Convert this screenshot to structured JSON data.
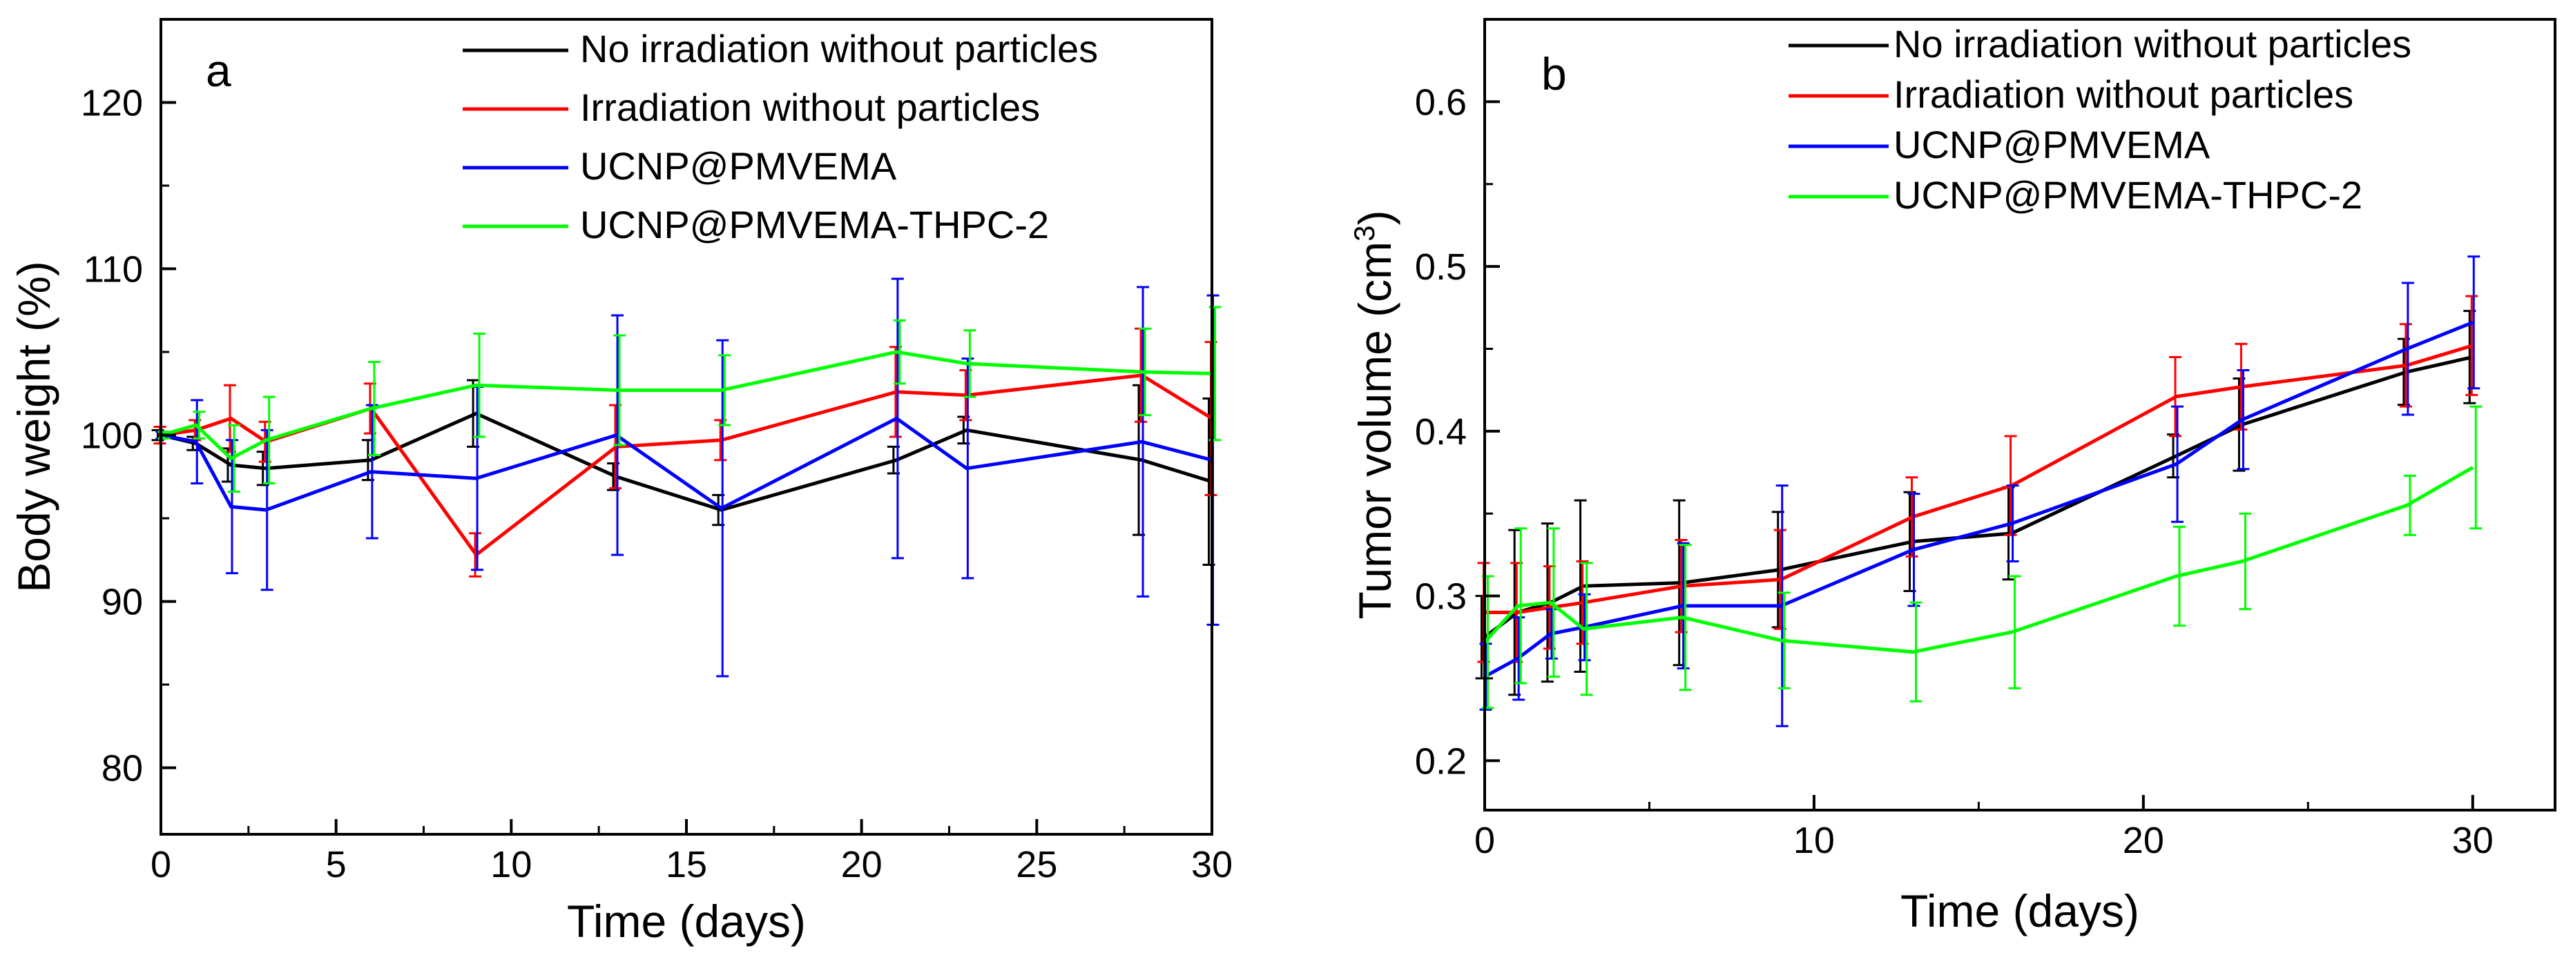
{
  "chart_data": [
    {
      "panel_label": "a",
      "type": "line",
      "xlabel": "Time (days)",
      "ylabel": "Body weight (%)",
      "xlim": [
        0,
        30
      ],
      "ylim": [
        76,
        125
      ],
      "xticks": [
        0,
        5,
        10,
        15,
        20,
        25,
        30
      ],
      "yticks": [
        80,
        90,
        100,
        110,
        120
      ],
      "xtick_labels": [
        "0",
        "5",
        "10",
        "15",
        "20",
        "25",
        "30"
      ],
      "ytick_labels": [
        "80",
        "90",
        "100",
        "110",
        "120"
      ],
      "legend_position": "top-right",
      "x": [
        0,
        1,
        2,
        3,
        6,
        9,
        13,
        16,
        21,
        23,
        28,
        30
      ],
      "series": [
        {
          "name": "No irradiation without particles",
          "color": "#000000",
          "values": [
            100,
            99.5,
            98.2,
            98,
            98.5,
            101.3,
            97.5,
            95.5,
            98.5,
            100.3,
            98.5,
            97.2
          ],
          "errors": [
            0.3,
            0.4,
            1.0,
            1.0,
            1.2,
            2.0,
            0.8,
            0.9,
            0.8,
            0.8,
            4.5,
            5.0
          ]
        },
        {
          "name": "Irradiation without particles",
          "color": "#ff0000",
          "values": [
            100,
            100.3,
            101,
            99.6,
            101.6,
            92.8,
            99.3,
            99.7,
            102.6,
            102.4,
            103.6,
            101
          ],
          "errors": [
            0.5,
            0.6,
            2.0,
            1.2,
            1.5,
            1.3,
            2.5,
            1.2,
            2.7,
            1.5,
            2.8,
            4.6
          ]
        },
        {
          "name": "UCNP@PMVEMA",
          "color": "#0000ff",
          "values": [
            100,
            99.6,
            95.7,
            95.5,
            97.8,
            97.4,
            100,
            95.6,
            101,
            98,
            99.6,
            98.5
          ],
          "errors": [
            0.2,
            2.5,
            4.0,
            4.8,
            4.0,
            5.5,
            7.2,
            10.1,
            8.4,
            6.6,
            9.3,
            9.9
          ]
        },
        {
          "name": "UCNP@PMVEMA-THPC-2",
          "color": "#00ff00",
          "values": [
            100,
            100.6,
            98.6,
            99.7,
            101.6,
            103,
            102.7,
            102.7,
            105,
            104.3,
            103.8,
            103.7
          ],
          "errors": [
            0.2,
            0.8,
            2.0,
            2.6,
            2.8,
            3.1,
            3.3,
            2.1,
            1.9,
            2.0,
            2.6,
            4.0
          ]
        }
      ]
    },
    {
      "panel_label": "b",
      "type": "line",
      "xlabel": "Time (days)",
      "ylabel_prefix": "Tumor volume (cm",
      "ylabel_sup": "3",
      "ylabel_suffix": ")",
      "xlim": [
        0,
        32.5
      ],
      "ylim": [
        0.17,
        0.65
      ],
      "xticks": [
        0,
        10,
        20,
        30
      ],
      "yticks": [
        0.2,
        0.3,
        0.4,
        0.5,
        0.6
      ],
      "xtick_labels": [
        "0",
        "10",
        "20",
        "30"
      ],
      "ytick_labels": [
        "0.2",
        "0.3",
        "0.4",
        "0.5",
        "0.6"
      ],
      "legend_position": "top-right",
      "x": [
        0,
        1,
        2,
        3,
        6,
        9,
        13,
        16,
        21,
        23,
        28,
        30
      ],
      "series": [
        {
          "name": "No irradiation without particles",
          "color": "#000000",
          "values": [
            0.275,
            0.29,
            0.296,
            0.306,
            0.308,
            0.316,
            0.333,
            0.338,
            0.385,
            0.404,
            0.436,
            0.445
          ],
          "errors": [
            0.025,
            0.05,
            0.048,
            0.052,
            0.05,
            0.035,
            0.03,
            0.028,
            0.013,
            0.028,
            0.02,
            0.028
          ]
        },
        {
          "name": "Irradiation without particles",
          "color": "#ff0000",
          "values": [
            0.29,
            0.29,
            0.293,
            0.296,
            0.306,
            0.31,
            0.348,
            0.367,
            0.421,
            0.427,
            0.44,
            0.452
          ],
          "errors": [
            0.03,
            0.03,
            0.025,
            0.025,
            0.028,
            0.03,
            0.024,
            0.03,
            0.024,
            0.026,
            0.025,
            0.03
          ]
        },
        {
          "name": "UCNP@PMVEMA",
          "color": "#0000ff",
          "values": [
            0.251,
            0.262,
            0.277,
            0.281,
            0.294,
            0.294,
            0.328,
            0.344,
            0.38,
            0.407,
            0.45,
            0.466
          ],
          "errors": [
            0.02,
            0.025,
            0.015,
            0.02,
            0.038,
            0.073,
            0.034,
            0.023,
            0.035,
            0.03,
            0.04,
            0.04
          ]
        },
        {
          "name": "UCNP@PMVEMA-THPC-2",
          "color": "#00ff00",
          "values": [
            0.272,
            0.294,
            0.296,
            0.28,
            0.287,
            0.273,
            0.266,
            0.278,
            0.312,
            0.321,
            0.355,
            0.378
          ],
          "errors": [
            0.04,
            0.047,
            0.045,
            0.04,
            0.044,
            0.029,
            0.03,
            0.034,
            0.03,
            0.029,
            0.018,
            0.037
          ]
        }
      ]
    }
  ]
}
